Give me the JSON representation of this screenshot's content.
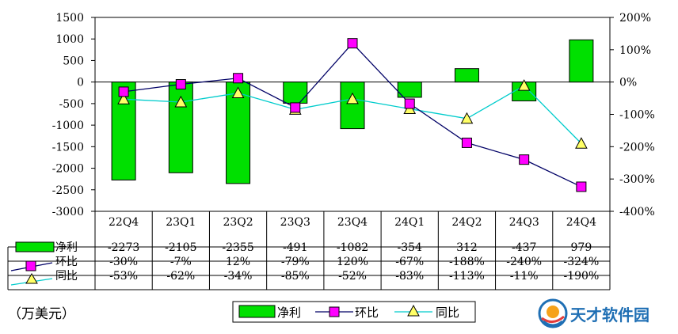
{
  "chart_data": {
    "type": "bar+line",
    "categories": [
      "22Q4",
      "23Q1",
      "23Q2",
      "23Q3",
      "23Q4",
      "24Q1",
      "24Q2",
      "24Q3",
      "24Q4"
    ],
    "series": [
      {
        "name": "净利",
        "kind": "bar",
        "axis": "left",
        "color": "#00e000",
        "values": [
          -2273,
          -2105,
          -2355,
          -491,
          -1082,
          -354,
          312,
          -437,
          979
        ],
        "labels": [
          "-2273",
          "-2105",
          "-2355",
          "-491",
          "-1082",
          "-354",
          "312",
          "-437",
          "979"
        ]
      },
      {
        "name": "环比",
        "kind": "line",
        "axis": "right",
        "color": "#000066",
        "marker": "square",
        "marker_color": "#ff00ff",
        "values": [
          -30,
          -7,
          12,
          -79,
          120,
          -67,
          -188,
          -240,
          -324
        ],
        "labels": [
          "-30%",
          "-7%",
          "12%",
          "-79%",
          "120%",
          "-67%",
          "-188%",
          "-240%",
          "-324%"
        ]
      },
      {
        "name": "同比",
        "kind": "line",
        "axis": "right",
        "color": "#00cccc",
        "marker": "triangle",
        "marker_color": "#ffff66",
        "values": [
          -53,
          -62,
          -34,
          -85,
          -52,
          -83,
          -113,
          -11,
          -190
        ],
        "labels": [
          "-53%",
          "-62%",
          "-34%",
          "-85%",
          "-52%",
          "-83%",
          "-113%",
          "-11%",
          "-190%"
        ]
      }
    ],
    "y_left": {
      "min": -3000,
      "max": 1500,
      "step": 500,
      "ticks": [
        "-3000",
        "-2500",
        "-2000",
        "-1500",
        "-1000",
        "-500",
        "0",
        "500",
        "1000",
        "1500"
      ]
    },
    "y_right": {
      "min": -400,
      "max": 200,
      "step": 100,
      "ticks": [
        "-400%",
        "-300%",
        "-200%",
        "-100%",
        "0%",
        "100%",
        "200%"
      ]
    },
    "grid": false,
    "legend_position": "bottom",
    "data_table": true
  },
  "unit_label": "（万美元）",
  "watermark": {
    "text": "天才软件园",
    "logo": "sun-swirl-logo"
  }
}
